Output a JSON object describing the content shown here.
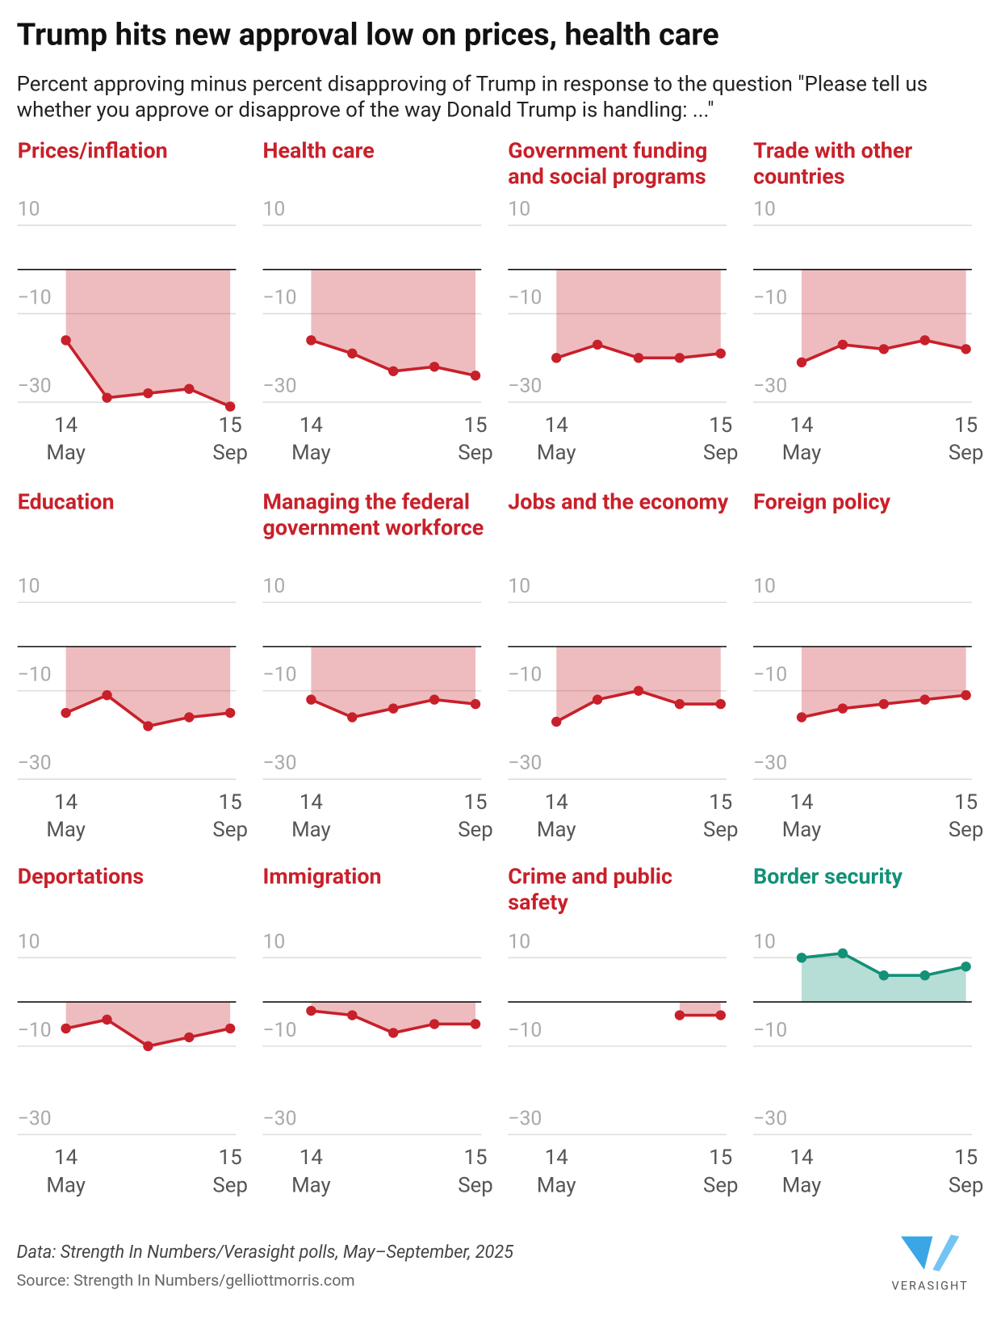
{
  "title": "Trump hits new approval low on prices, health care",
  "subtitle": "Percent approving minus percent disapproving of Trump in response to the question \"Please tell us whether you approve or disapprove of the way Donald Trump is handling: ...\"",
  "chart_data": [
    {
      "type": "area",
      "title": "Prices/inflation",
      "categories": [
        [
          "14",
          "May"
        ],
        null,
        null,
        null,
        [
          "15",
          "Sep"
        ]
      ],
      "values": [
        -16,
        -29,
        -28,
        -27,
        -31
      ],
      "color": "#c8202a",
      "ylim": [
        -30,
        10
      ],
      "yticks": [
        10,
        {
          "value": -10,
          "label": "−10"
        },
        {
          "value": -30,
          "label": "−30"
        }
      ]
    },
    {
      "type": "area",
      "title": "Health care",
      "categories": [
        [
          "14",
          "May"
        ],
        null,
        null,
        null,
        [
          "15",
          "Sep"
        ]
      ],
      "values": [
        -16,
        -19,
        -23,
        -22,
        -24
      ],
      "color": "#c8202a",
      "ylim": [
        -30,
        10
      ],
      "yticks": [
        10,
        {
          "value": -10,
          "label": "−10"
        },
        {
          "value": -30,
          "label": "−30"
        }
      ]
    },
    {
      "type": "area",
      "title": "Government funding and social programs",
      "categories": [
        [
          "14",
          "May"
        ],
        null,
        null,
        null,
        [
          "15",
          "Sep"
        ]
      ],
      "values": [
        -20,
        -17,
        -20,
        -20,
        -19
      ],
      "color": "#c8202a",
      "ylim": [
        -30,
        10
      ],
      "yticks": [
        10,
        {
          "value": -10,
          "label": "−10"
        },
        {
          "value": -30,
          "label": "−30"
        }
      ]
    },
    {
      "type": "area",
      "title": "Trade with other countries",
      "categories": [
        [
          "14",
          "May"
        ],
        null,
        null,
        null,
        [
          "15",
          "Sep"
        ]
      ],
      "values": [
        -21,
        -17,
        -18,
        -16,
        -18
      ],
      "color": "#c8202a",
      "ylim": [
        -30,
        10
      ],
      "yticks": [
        10,
        {
          "value": -10,
          "label": "−10"
        },
        {
          "value": -30,
          "label": "−30"
        }
      ]
    },
    {
      "type": "area",
      "title": "Education",
      "categories": [
        [
          "14",
          "May"
        ],
        null,
        null,
        null,
        [
          "15",
          "Sep"
        ]
      ],
      "values": [
        -15,
        -11,
        -18,
        -16,
        -15
      ],
      "color": "#c8202a",
      "ylim": [
        -30,
        10
      ],
      "yticks": [
        10,
        {
          "value": -10,
          "label": "−10"
        },
        {
          "value": -30,
          "label": "−30"
        }
      ]
    },
    {
      "type": "area",
      "title": "Managing the federal government workforce",
      "categories": [
        [
          "14",
          "May"
        ],
        null,
        null,
        null,
        [
          "15",
          "Sep"
        ]
      ],
      "values": [
        -12,
        -16,
        -14,
        -12,
        -13
      ],
      "color": "#c8202a",
      "ylim": [
        -30,
        10
      ],
      "yticks": [
        10,
        {
          "value": -10,
          "label": "−10"
        },
        {
          "value": -30,
          "label": "−30"
        }
      ]
    },
    {
      "type": "area",
      "title": "Jobs and the economy",
      "categories": [
        [
          "14",
          "May"
        ],
        null,
        null,
        null,
        [
          "15",
          "Sep"
        ]
      ],
      "values": [
        -17,
        -12,
        -10,
        -13,
        -13
      ],
      "color": "#c8202a",
      "ylim": [
        -30,
        10
      ],
      "yticks": [
        10,
        {
          "value": -10,
          "label": "−10"
        },
        {
          "value": -30,
          "label": "−30"
        }
      ]
    },
    {
      "type": "area",
      "title": "Foreign policy",
      "categories": [
        [
          "14",
          "May"
        ],
        null,
        null,
        null,
        [
          "15",
          "Sep"
        ]
      ],
      "values": [
        -16,
        -14,
        -13,
        -12,
        -11
      ],
      "color": "#c8202a",
      "ylim": [
        -30,
        10
      ],
      "yticks": [
        10,
        {
          "value": -10,
          "label": "−10"
        },
        {
          "value": -30,
          "label": "−30"
        }
      ]
    },
    {
      "type": "area",
      "title": "Deportations",
      "categories": [
        [
          "14",
          "May"
        ],
        null,
        null,
        null,
        [
          "15",
          "Sep"
        ]
      ],
      "values": [
        -6,
        -4,
        -10,
        -8,
        -6
      ],
      "color": "#c8202a",
      "ylim": [
        -30,
        10
      ],
      "yticks": [
        10,
        {
          "value": -10,
          "label": "−10"
        },
        {
          "value": -30,
          "label": "−30"
        }
      ]
    },
    {
      "type": "area",
      "title": "Immigration",
      "categories": [
        [
          "14",
          "May"
        ],
        null,
        null,
        null,
        [
          "15",
          "Sep"
        ]
      ],
      "values": [
        -2,
        -3,
        -7,
        -5,
        -5
      ],
      "color": "#c8202a",
      "ylim": [
        -30,
        10
      ],
      "yticks": [
        10,
        {
          "value": -10,
          "label": "−10"
        },
        {
          "value": -30,
          "label": "−30"
        }
      ]
    },
    {
      "type": "area",
      "title": "Crime and public safety",
      "categories": [
        [
          "14",
          "May"
        ],
        null,
        null,
        null,
        [
          "15",
          "Sep"
        ]
      ],
      "values": [
        null,
        null,
        null,
        -3,
        -3
      ],
      "color": "#c8202a",
      "ylim": [
        -30,
        10
      ],
      "yticks": [
        10,
        {
          "value": -10,
          "label": "−10"
        },
        {
          "value": -30,
          "label": "−30"
        }
      ]
    },
    {
      "type": "area",
      "title": "Border security",
      "categories": [
        [
          "14",
          "May"
        ],
        null,
        null,
        null,
        [
          "15",
          "Sep"
        ]
      ],
      "values": [
        10,
        11,
        6,
        6,
        8
      ],
      "color": "#129177",
      "ylim": [
        -30,
        10
      ],
      "yticks": [
        10,
        {
          "value": -10,
          "label": "−10"
        },
        {
          "value": -30,
          "label": "−30"
        }
      ]
    }
  ],
  "note": "Data: Strength In Numbers/Verasight polls, May–September, 2025",
  "source": "Source: Strength In Numbers/gelliottmorris.com",
  "logo": "VERASIGHT"
}
